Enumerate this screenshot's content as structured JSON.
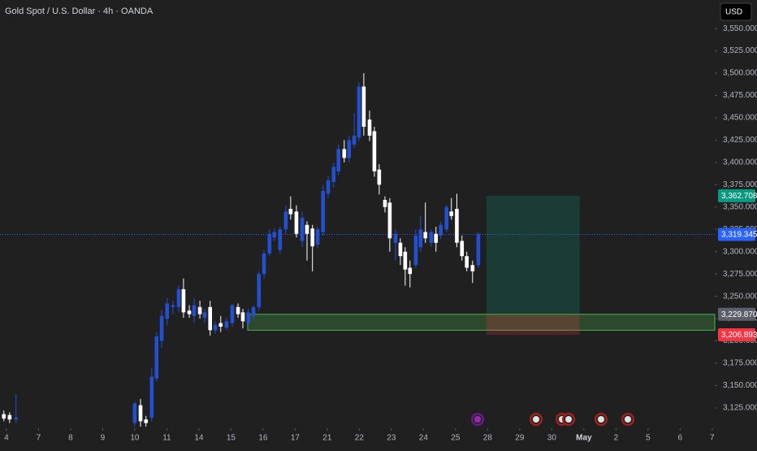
{
  "chart_data": {
    "type": "candlestick",
    "title": "Gold Spot / U.S. Dollar · 4h · OANDA",
    "currency": "USD",
    "up_color": "#2450d0",
    "down_color": "#ffffff",
    "xlim": [
      -0.2,
      22.08
    ],
    "ylim": [
      3104,
      3582
    ],
    "xticks": [
      {
        "value": 0,
        "label": "4"
      },
      {
        "value": 1,
        "label": "7"
      },
      {
        "value": 2,
        "label": "8"
      },
      {
        "value": 3,
        "label": "9"
      },
      {
        "value": 4,
        "label": "10"
      },
      {
        "value": 5,
        "label": "11"
      },
      {
        "value": 6,
        "label": "14"
      },
      {
        "value": 7,
        "label": "15"
      },
      {
        "value": 8,
        "label": "16"
      },
      {
        "value": 9,
        "label": "17"
      },
      {
        "value": 10,
        "label": "21"
      },
      {
        "value": 11,
        "label": "22"
      },
      {
        "value": 12,
        "label": "23"
      },
      {
        "value": 13,
        "label": "24"
      },
      {
        "value": 14,
        "label": "25"
      },
      {
        "value": 15,
        "label": "28"
      },
      {
        "value": 16,
        "label": "29"
      },
      {
        "value": 17,
        "label": "30"
      },
      {
        "value": 18,
        "label": "May"
      },
      {
        "value": 19,
        "label": "2"
      },
      {
        "value": 20,
        "label": "5"
      },
      {
        "value": 21,
        "label": "6"
      },
      {
        "value": 22,
        "label": "7"
      }
    ],
    "yticks": [
      {
        "value": 3125,
        "label": "3,125.000"
      },
      {
        "value": 3150,
        "label": "3,150.000"
      },
      {
        "value": 3175,
        "label": "3,175.000"
      },
      {
        "value": 3200,
        "label": "3,200.000"
      },
      {
        "value": 3225,
        "label": "3,225.000"
      },
      {
        "value": 3250,
        "label": "3,250.000"
      },
      {
        "value": 3275,
        "label": "3,275.000"
      },
      {
        "value": 3300,
        "label": "3,300.000"
      },
      {
        "value": 3325,
        "label": "3,325.000"
      },
      {
        "value": 3350,
        "label": "3,350.000"
      },
      {
        "value": 3375,
        "label": "3,375.000"
      },
      {
        "value": 3400,
        "label": "3,400.000"
      },
      {
        "value": 3425,
        "label": "3,425.000"
      },
      {
        "value": 3450,
        "label": "3,450.000"
      },
      {
        "value": 3475,
        "label": "3,475.000"
      },
      {
        "value": 3500,
        "label": "3,500.000"
      },
      {
        "value": 3525,
        "label": "3,525.000"
      },
      {
        "value": 3550,
        "label": "3,550.000"
      }
    ],
    "x": [
      -0.08,
      0.1,
      0.3,
      4,
      4.18,
      4.35,
      4.53,
      4.68,
      4.84,
      5.01,
      5.19,
      5.37,
      5.52,
      5.7,
      5.85,
      6.03,
      6.18,
      6.35,
      6.51,
      6.68,
      6.86,
      7.04,
      7.22,
      7.37,
      7.54,
      7.7,
      7.87,
      8.03,
      8.2,
      8.35,
      8.53,
      8.71,
      8.86,
      9.04,
      9.22,
      9.37,
      9.54,
      9.7,
      9.87,
      10.03,
      10.2,
      10.35,
      10.53,
      10.68,
      10.84,
      10.99,
      11.14,
      11.32,
      11.47,
      11.62,
      11.8,
      11.95,
      12.13,
      12.28,
      12.43,
      12.58,
      12.76,
      12.91,
      13.06,
      13.24,
      13.39,
      13.54,
      13.72,
      13.87,
      14.04,
      14.2,
      14.35,
      14.53,
      14.71
    ],
    "open": [
      3118,
      3117,
      3112,
      3108,
      3128,
      3112,
      3114,
      3158,
      3200,
      3225,
      3238,
      3238,
      3258,
      3234,
      3228,
      3238,
      3226,
      3238,
      3212,
      3220,
      3215,
      3220,
      3238,
      3232,
      3220,
      3228,
      3238,
      3275,
      3298,
      3316,
      3302,
      3325,
      3348,
      3345,
      3312,
      3330,
      3326,
      3308,
      3322,
      3365,
      3378,
      3390,
      3415,
      3405,
      3420,
      3428,
      3485,
      3448,
      3435,
      3392,
      3358,
      3355,
      3310,
      3310,
      3300,
      3282,
      3285,
      3305,
      3322,
      3310,
      3320,
      3318,
      3325,
      3345,
      3348,
      3312,
      3295,
      3285,
      3285
    ],
    "high": [
      3122,
      3120,
      3140,
      3132,
      3135,
      3116,
      3170,
      3210,
      3235,
      3248,
      3245,
      3262,
      3270,
      3240,
      3248,
      3245,
      3236,
      3245,
      3222,
      3228,
      3226,
      3242,
      3242,
      3236,
      3236,
      3240,
      3278,
      3302,
      3325,
      3326,
      3328,
      3352,
      3362,
      3352,
      3345,
      3334,
      3330,
      3328,
      3375,
      3385,
      3400,
      3420,
      3425,
      3430,
      3455,
      3490,
      3500,
      3458,
      3440,
      3398,
      3362,
      3360,
      3325,
      3315,
      3305,
      3290,
      3325,
      3340,
      3355,
      3325,
      3328,
      3334,
      3352,
      3360,
      3365,
      3318,
      3300,
      3290,
      3322
    ],
    "low": [
      3110,
      3108,
      3108,
      3104,
      3104,
      3104,
      3110,
      3155,
      3192,
      3218,
      3230,
      3232,
      3226,
      3226,
      3220,
      3225,
      3220,
      3206,
      3208,
      3210,
      3212,
      3216,
      3226,
      3214,
      3216,
      3224,
      3234,
      3270,
      3295,
      3312,
      3298,
      3320,
      3336,
      3316,
      3305,
      3290,
      3278,
      3304,
      3318,
      3360,
      3372,
      3386,
      3400,
      3400,
      3416,
      3424,
      3430,
      3424,
      3384,
      3364,
      3344,
      3300,
      3290,
      3285,
      3262,
      3260,
      3282,
      3300,
      3310,
      3306,
      3300,
      3314,
      3322,
      3336,
      3305,
      3290,
      3278,
      3265,
      3282
    ],
    "close": [
      3113,
      3112,
      3114,
      3130,
      3110,
      3108,
      3160,
      3205,
      3228,
      3242,
      3240,
      3258,
      3232,
      3230,
      3240,
      3230,
      3232,
      3212,
      3218,
      3216,
      3222,
      3240,
      3230,
      3222,
      3232,
      3238,
      3275,
      3298,
      3320,
      3322,
      3325,
      3345,
      3342,
      3320,
      3338,
      3320,
      3306,
      3325,
      3368,
      3380,
      3395,
      3415,
      3405,
      3425,
      3430,
      3485,
      3440,
      3430,
      3390,
      3375,
      3350,
      3315,
      3320,
      3295,
      3280,
      3275,
      3318,
      3325,
      3315,
      3322,
      3310,
      3330,
      3350,
      3340,
      3310,
      3295,
      3282,
      3278,
      3320
    ],
    "price_tags": [
      {
        "value": 3362.708,
        "label": "3,362.708",
        "color": "#089981"
      },
      {
        "value": 3319.345,
        "label": "3,319.345",
        "color": "#2962ff"
      },
      {
        "value": 3229.87,
        "label": "3,229.870",
        "color": "#5d606b"
      },
      {
        "value": 3206.893,
        "label": "3,206.893",
        "color": "#f23645"
      }
    ],
    "position_x": [
      14.96,
      17.87
    ],
    "zone": {
      "x": 7.52,
      "low": 3212
    }
  }
}
